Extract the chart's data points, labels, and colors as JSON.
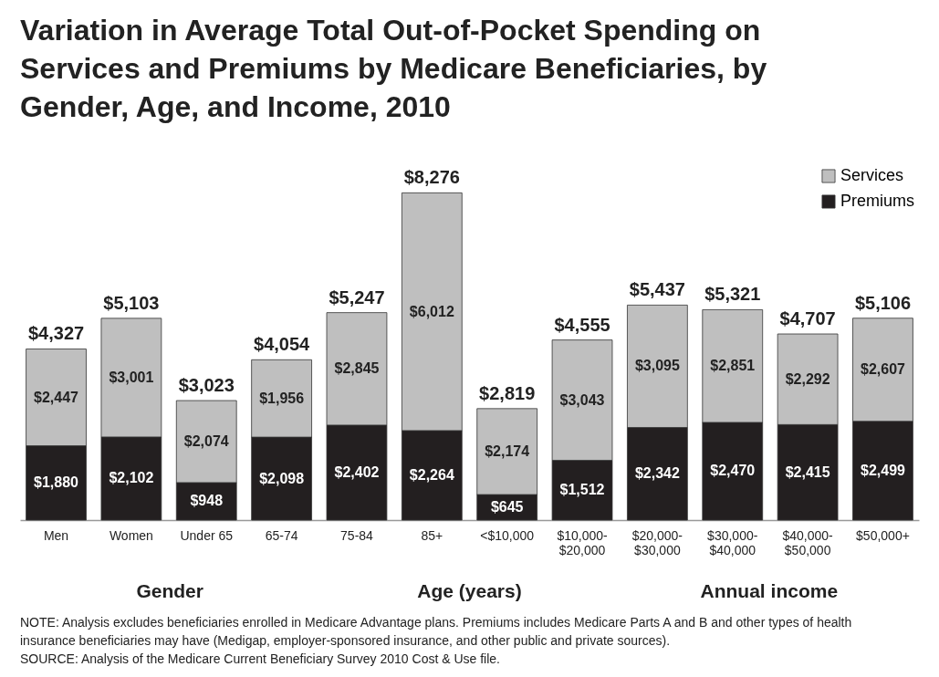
{
  "chart_data": {
    "type": "bar",
    "title": "Variation in Average Total Out-of-Pocket Spending on Services and Premiums by Medicare Beneficiaries, by Gender, Age, and Income, 2010",
    "categories": [
      "Men",
      "Women",
      "Under 65",
      "65-74",
      "75-84",
      "85+",
      "<$10,000",
      "$10,000-$20,000",
      "$20,000-$30,000",
      "$30,000-$40,000",
      "$40,000-$50,000",
      "$50,000+"
    ],
    "stacked": true,
    "legend": "top right",
    "series": [
      {
        "name": "Premiums",
        "color": "#231f20",
        "values": [
          1880,
          2102,
          948,
          2098,
          2402,
          2264,
          645,
          1512,
          2342,
          2470,
          2415,
          2499
        ],
        "value_labels": [
          "$1,880",
          "$2,102",
          "$948",
          "$2,098",
          "$2,402",
          "$2,264",
          "$645",
          "$1,512",
          "$2,342",
          "$2,470",
          "$2,415",
          "$2,499"
        ]
      },
      {
        "name": "Services",
        "color": "#bfbfbf",
        "values": [
          2447,
          3001,
          2074,
          1956,
          2845,
          6012,
          2174,
          3043,
          3095,
          2851,
          2292,
          2607
        ],
        "value_labels": [
          "$2,447",
          "$3,001",
          "$2,074",
          "$1,956",
          "$2,845",
          "$6,012",
          "$2,174",
          "$3,043",
          "$3,095",
          "$2,851",
          "$2,292",
          "$2,607"
        ]
      }
    ],
    "totals": [
      "$4,327",
      "$5,103",
      "$3,023",
      "$4,054",
      "$5,247",
      "$8,276",
      "$2,819",
      "$4,555",
      "$5,437",
      "$5,321",
      "$4,707",
      "$5,106"
    ],
    "annotations": [
      "Gender",
      "Age (years)",
      "Annual income",
      "NOTE: Analysis excludes beneficiaries enrolled in Medicare Advantage plans. Premiums includes Medicare Parts A and B and other types of health insurance beneficiaries may have (Medigap, employer-sponsored insurance, and other public and private sources).",
      "SOURCE: Analysis of the Medicare Current Beneficiary Survey 2010 Cost & Use file."
    ]
  }
}
